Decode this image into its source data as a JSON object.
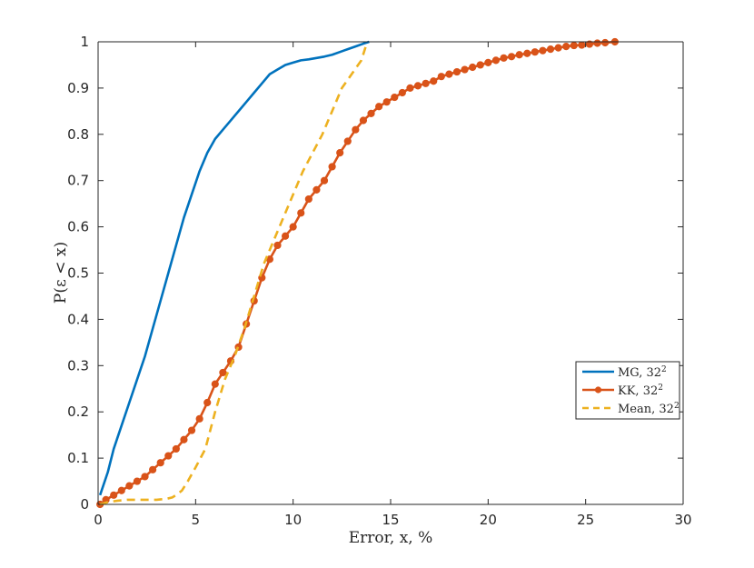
{
  "chart_data": {
    "type": "line",
    "title": "",
    "xlabel": "Error, x, %",
    "ylabel": "P(ε < x)",
    "xlim": [
      0,
      30
    ],
    "ylim": [
      0,
      1
    ],
    "xticks": [
      0,
      5,
      10,
      15,
      20,
      25,
      30
    ],
    "yticks": [
      0,
      0.1,
      0.2,
      0.3,
      0.4,
      0.5,
      0.6,
      0.7,
      0.8,
      0.9,
      1
    ],
    "xtick_labels": [
      "0",
      "5",
      "10",
      "15",
      "20",
      "25",
      "30"
    ],
    "ytick_labels": [
      "0",
      "0.1",
      "0.2",
      "0.3",
      "0.4",
      "0.5",
      "0.6",
      "0.7",
      "0.8",
      "0.9",
      "1"
    ],
    "grid": false,
    "legend_position": "right",
    "series": [
      {
        "name": "MG, 32",
        "name_superscript": "2",
        "style": "solid",
        "color": "#0072BD",
        "x": [
          0.1,
          0.5,
          0.8,
          1.2,
          1.6,
          2.0,
          2.4,
          2.8,
          3.2,
          3.6,
          4.0,
          4.4,
          4.8,
          5.2,
          5.6,
          6.0,
          6.4,
          6.8,
          7.2,
          7.6,
          8.0,
          8.4,
          8.8,
          9.2,
          9.6,
          10.0,
          10.4,
          10.8,
          11.2,
          11.6,
          12.0,
          12.4,
          12.8,
          13.2,
          13.6,
          13.9
        ],
        "values": [
          0.02,
          0.07,
          0.12,
          0.17,
          0.22,
          0.27,
          0.32,
          0.38,
          0.44,
          0.5,
          0.56,
          0.62,
          0.67,
          0.72,
          0.76,
          0.79,
          0.81,
          0.83,
          0.85,
          0.87,
          0.89,
          0.91,
          0.93,
          0.94,
          0.95,
          0.955,
          0.96,
          0.962,
          0.965,
          0.968,
          0.972,
          0.978,
          0.984,
          0.99,
          0.996,
          1.0
        ]
      },
      {
        "name": "KK, 32",
        "name_superscript": "2",
        "style": "solid-markers",
        "color": "#D95319",
        "x": [
          0.1,
          0.4,
          0.8,
          1.2,
          1.6,
          2.0,
          2.4,
          2.8,
          3.2,
          3.6,
          4.0,
          4.4,
          4.8,
          5.2,
          5.6,
          6.0,
          6.4,
          6.8,
          7.2,
          7.6,
          8.0,
          8.4,
          8.8,
          9.2,
          9.6,
          10.0,
          10.4,
          10.8,
          11.2,
          11.6,
          12.0,
          12.4,
          12.8,
          13.2,
          13.6,
          14.0,
          14.4,
          14.8,
          15.2,
          15.6,
          16.0,
          16.4,
          16.8,
          17.2,
          17.6,
          18.0,
          18.4,
          18.8,
          19.2,
          19.6,
          20.0,
          20.4,
          20.8,
          21.2,
          21.6,
          22.0,
          22.4,
          22.8,
          23.2,
          23.6,
          24.0,
          24.4,
          24.8,
          25.2,
          25.6,
          26.0,
          26.5
        ],
        "values": [
          0.0,
          0.01,
          0.02,
          0.03,
          0.04,
          0.05,
          0.06,
          0.075,
          0.09,
          0.105,
          0.12,
          0.14,
          0.16,
          0.185,
          0.22,
          0.26,
          0.285,
          0.31,
          0.34,
          0.39,
          0.44,
          0.49,
          0.53,
          0.56,
          0.58,
          0.6,
          0.63,
          0.66,
          0.68,
          0.7,
          0.73,
          0.76,
          0.785,
          0.81,
          0.83,
          0.845,
          0.86,
          0.87,
          0.88,
          0.89,
          0.9,
          0.905,
          0.91,
          0.915,
          0.925,
          0.93,
          0.935,
          0.94,
          0.945,
          0.95,
          0.955,
          0.96,
          0.965,
          0.968,
          0.972,
          0.975,
          0.978,
          0.981,
          0.984,
          0.987,
          0.99,
          0.992,
          0.993,
          0.995,
          0.997,
          0.998,
          1.0
        ]
      },
      {
        "name": "Mean, 32",
        "name_superscript": "2",
        "style": "dashed",
        "color": "#EDB120",
        "x": [
          0.1,
          0.5,
          1.0,
          1.5,
          2.0,
          2.5,
          3.0,
          3.5,
          3.8,
          4.0,
          4.3,
          4.6,
          5.0,
          5.5,
          6.0,
          6.5,
          7.0,
          7.5,
          8.0,
          8.5,
          9.0,
          9.5,
          10.0,
          10.5,
          11.0,
          11.5,
          12.0,
          12.5,
          13.0,
          13.5,
          13.8
        ],
        "values": [
          0.0,
          0.005,
          0.008,
          0.01,
          0.01,
          0.01,
          0.01,
          0.012,
          0.015,
          0.02,
          0.03,
          0.05,
          0.08,
          0.12,
          0.2,
          0.27,
          0.32,
          0.38,
          0.45,
          0.52,
          0.57,
          0.62,
          0.67,
          0.72,
          0.76,
          0.8,
          0.85,
          0.9,
          0.93,
          0.96,
          1.0
        ]
      }
    ]
  }
}
